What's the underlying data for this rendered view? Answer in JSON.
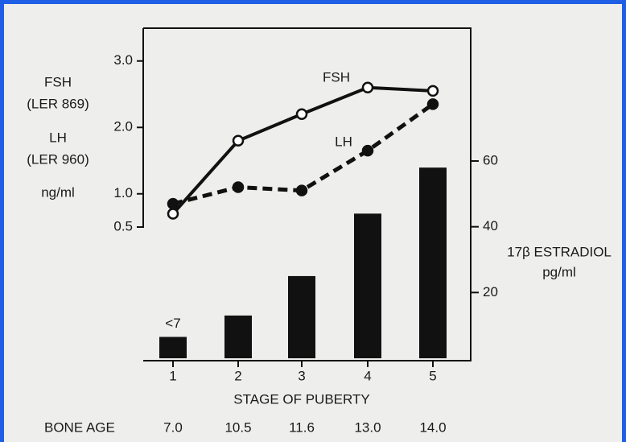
{
  "chart_data": {
    "type": "combo",
    "categories": [
      "1",
      "2",
      "3",
      "4",
      "5"
    ],
    "xlabel": "STAGE OF PUBERTY",
    "ylabel_lines": [
      "FSH",
      "(LER 869)",
      "LH",
      "(LER 960)",
      "ng/ml"
    ],
    "y2label_lines": [
      "17β ESTRADIOL",
      "pg/ml"
    ],
    "ylim": [
      0.5,
      3.5
    ],
    "yticks": [
      0.5,
      {
        "value": 1,
        "label": "1.0"
      },
      {
        "value": 2,
        "label": "2.0"
      },
      {
        "value": 3,
        "label": "3.0"
      }
    ],
    "y2lim": [
      0,
      60
    ],
    "y2ticks": [
      20,
      40,
      60
    ],
    "series": [
      {
        "name": "FSH",
        "kind": "line",
        "color": "#111111",
        "marker": "open",
        "dashed": false,
        "values": [
          0.7,
          1.8,
          2.2,
          2.6,
          2.55
        ]
      },
      {
        "name": "LH",
        "kind": "line",
        "color": "#111111",
        "marker": "filled",
        "dashed": true,
        "values": [
          0.85,
          1.1,
          1.05,
          1.65,
          2.35
        ]
      },
      {
        "kind": "bar",
        "axis": "y2",
        "color": "#111111",
        "values": [
          6.5,
          13,
          25,
          44,
          58
        ],
        "value_labels": [
          "<7",
          null,
          null,
          null,
          null
        ]
      }
    ],
    "bone_age": {
      "label": "BONE AGE",
      "values": [
        "7.0",
        "10.5",
        "11.6",
        "13.0",
        "14.0"
      ]
    }
  }
}
